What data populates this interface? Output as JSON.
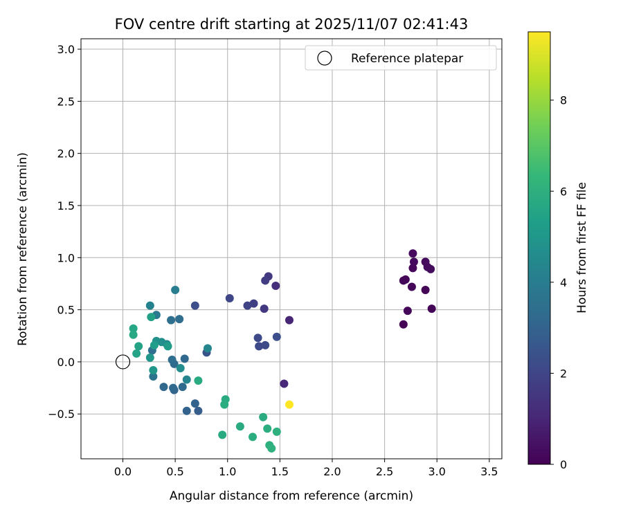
{
  "chart_data": {
    "type": "scatter",
    "title": "FOV centre drift starting at 2025/11/07 02:41:43",
    "xlabel": "Angular distance from reference (arcmin)",
    "ylabel": "Rotation from reference (arcmin)",
    "xlim": [
      -0.4,
      3.62
    ],
    "ylim": [
      -0.93,
      3.1
    ],
    "xticks": [
      0.0,
      0.5,
      1.0,
      1.5,
      2.0,
      2.5,
      3.0,
      3.5
    ],
    "xtick_labels": [
      "0.0",
      "0.5",
      "1.0",
      "1.5",
      "2.0",
      "2.5",
      "3.0",
      "3.5"
    ],
    "yticks": [
      -0.5,
      0.0,
      0.5,
      1.0,
      1.5,
      2.0,
      2.5,
      3.0
    ],
    "ytick_labels": [
      "−0.5",
      "0.0",
      "0.5",
      "1.0",
      "1.5",
      "2.0",
      "2.5",
      "3.0"
    ],
    "grid": true,
    "legend": {
      "position": "top-right",
      "entries": [
        "Reference platepar"
      ]
    },
    "reference_point": {
      "x": 0.0,
      "y": 0.0,
      "label": "Reference platepar"
    },
    "colorbar": {
      "label": "Hours from first FF file",
      "min": 0,
      "max": 9.5,
      "ticks": [
        0,
        2,
        4,
        6,
        8
      ],
      "tick_labels": [
        "0",
        "2",
        "4",
        "6",
        "8"
      ],
      "colormap": "viridis"
    },
    "points": [
      {
        "x": 2.68,
        "y": 0.36,
        "hours": 0.1
      },
      {
        "x": 2.72,
        "y": 0.49,
        "hours": 0.15
      },
      {
        "x": 2.95,
        "y": 0.51,
        "hours": 0.1
      },
      {
        "x": 2.89,
        "y": 0.69,
        "hours": 0.1
      },
      {
        "x": 2.68,
        "y": 0.78,
        "hours": 0.15
      },
      {
        "x": 2.7,
        "y": 0.79,
        "hours": 0.15
      },
      {
        "x": 2.76,
        "y": 0.72,
        "hours": 0.2
      },
      {
        "x": 2.77,
        "y": 0.9,
        "hours": 0.2
      },
      {
        "x": 2.78,
        "y": 0.96,
        "hours": 0.25
      },
      {
        "x": 2.77,
        "y": 1.04,
        "hours": 0.25
      },
      {
        "x": 2.89,
        "y": 0.96,
        "hours": 0.3
      },
      {
        "x": 2.91,
        "y": 0.91,
        "hours": 0.3
      },
      {
        "x": 2.94,
        "y": 0.89,
        "hours": 0.3
      },
      {
        "x": 1.59,
        "y": 0.4,
        "hours": 1.0
      },
      {
        "x": 1.54,
        "y": -0.21,
        "hours": 1.1
      },
      {
        "x": 1.46,
        "y": 0.73,
        "hours": 1.3
      },
      {
        "x": 1.39,
        "y": 0.82,
        "hours": 1.6
      },
      {
        "x": 1.36,
        "y": 0.78,
        "hours": 1.7
      },
      {
        "x": 1.35,
        "y": 0.51,
        "hours": 1.6
      },
      {
        "x": 1.25,
        "y": 0.56,
        "hours": 1.8
      },
      {
        "x": 1.19,
        "y": 0.54,
        "hours": 1.9
      },
      {
        "x": 1.02,
        "y": 0.61,
        "hours": 2.0
      },
      {
        "x": 1.29,
        "y": 0.23,
        "hours": 2.1
      },
      {
        "x": 1.3,
        "y": 0.15,
        "hours": 2.1
      },
      {
        "x": 1.36,
        "y": 0.16,
        "hours": 2.2
      },
      {
        "x": 1.47,
        "y": 0.24,
        "hours": 2.3
      },
      {
        "x": 0.69,
        "y": 0.54,
        "hours": 2.3
      },
      {
        "x": 0.8,
        "y": 0.09,
        "hours": 2.5
      },
      {
        "x": 0.72,
        "y": -0.47,
        "hours": 2.8
      },
      {
        "x": 0.61,
        "y": -0.47,
        "hours": 3.0
      },
      {
        "x": 0.69,
        "y": -0.4,
        "hours": 3.0
      },
      {
        "x": 0.49,
        "y": -0.27,
        "hours": 3.0
      },
      {
        "x": 0.48,
        "y": -0.25,
        "hours": 3.2
      },
      {
        "x": 0.39,
        "y": -0.24,
        "hours": 3.2
      },
      {
        "x": 0.57,
        "y": -0.24,
        "hours": 3.3
      },
      {
        "x": 0.59,
        "y": 0.03,
        "hours": 3.2
      },
      {
        "x": 0.49,
        "y": -0.02,
        "hours": 3.3
      },
      {
        "x": 0.47,
        "y": 0.02,
        "hours": 3.4
      },
      {
        "x": 0.54,
        "y": 0.41,
        "hours": 3.4
      },
      {
        "x": 0.46,
        "y": 0.4,
        "hours": 3.5
      },
      {
        "x": 0.28,
        "y": 0.11,
        "hours": 3.5
      },
      {
        "x": 0.29,
        "y": -0.14,
        "hours": 3.6
      },
      {
        "x": 0.5,
        "y": 0.69,
        "hours": 4.0
      },
      {
        "x": 0.32,
        "y": 0.45,
        "hours": 3.9
      },
      {
        "x": 0.26,
        "y": 0.54,
        "hours": 4.2
      },
      {
        "x": 0.61,
        "y": -0.17,
        "hours": 4.3
      },
      {
        "x": 0.81,
        "y": 0.13,
        "hours": 4.4
      },
      {
        "x": 0.55,
        "y": -0.06,
        "hours": 4.6
      },
      {
        "x": 0.42,
        "y": 0.17,
        "hours": 4.5
      },
      {
        "x": 0.37,
        "y": 0.19,
        "hours": 4.7
      },
      {
        "x": 0.32,
        "y": 0.2,
        "hours": 4.8
      },
      {
        "x": 0.29,
        "y": -0.08,
        "hours": 5.0
      },
      {
        "x": 0.26,
        "y": 0.04,
        "hours": 5.0
      },
      {
        "x": 0.43,
        "y": 0.15,
        "hours": 5.2
      },
      {
        "x": 0.3,
        "y": 0.16,
        "hours": 5.3
      },
      {
        "x": 0.27,
        "y": 0.43,
        "hours": 5.4
      },
      {
        "x": 0.15,
        "y": 0.15,
        "hours": 5.5
      },
      {
        "x": 0.13,
        "y": 0.08,
        "hours": 5.5
      },
      {
        "x": 0.1,
        "y": 0.32,
        "hours": 5.6
      },
      {
        "x": 0.1,
        "y": 0.26,
        "hours": 5.7
      },
      {
        "x": 0.72,
        "y": -0.18,
        "hours": 5.8
      },
      {
        "x": 0.98,
        "y": -0.36,
        "hours": 5.8
      },
      {
        "x": 0.97,
        "y": -0.41,
        "hours": 5.9
      },
      {
        "x": 0.95,
        "y": -0.7,
        "hours": 5.8
      },
      {
        "x": 1.12,
        "y": -0.62,
        "hours": 5.8
      },
      {
        "x": 1.24,
        "y": -0.72,
        "hours": 5.9
      },
      {
        "x": 1.34,
        "y": -0.53,
        "hours": 5.8
      },
      {
        "x": 1.38,
        "y": -0.64,
        "hours": 5.9
      },
      {
        "x": 1.47,
        "y": -0.67,
        "hours": 6.0
      },
      {
        "x": 1.4,
        "y": -0.8,
        "hours": 6.0
      },
      {
        "x": 1.42,
        "y": -0.83,
        "hours": 6.1
      },
      {
        "x": 1.59,
        "y": -0.41,
        "hours": 9.5
      }
    ]
  }
}
